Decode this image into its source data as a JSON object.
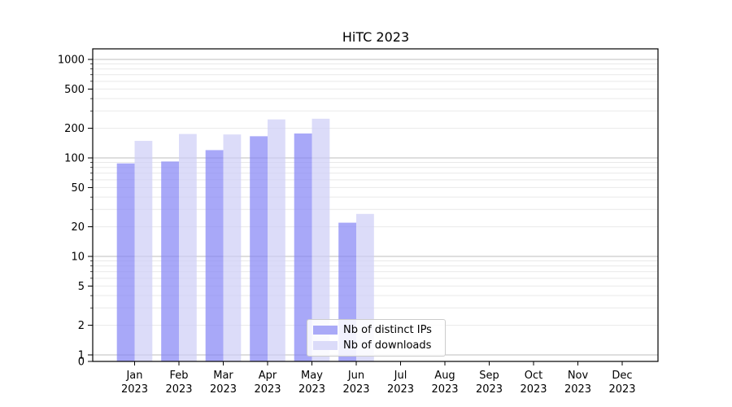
{
  "figure": {
    "title": "HiTC 2023"
  },
  "legend": {
    "items": [
      {
        "label": "Nb of distinct IPs",
        "color": "#a9a9f7"
      },
      {
        "label": "Nb of downloads",
        "color": "#dbdbf9"
      }
    ]
  },
  "chart_data": {
    "type": "bar",
    "title": "HiTC 2023",
    "categories": [
      "Jan 2023",
      "Feb 2023",
      "Mar 2023",
      "Apr 2023",
      "May 2023",
      "Jun 2023",
      "Jul 2023",
      "Aug 2023",
      "Sep 2023",
      "Oct 2023",
      "Nov 2023",
      "Dec 2023"
    ],
    "series": [
      {
        "name": "Nb of distinct IPs",
        "color": "#a9a9f7",
        "fill_rgba": "rgba(131,131,245,0.7)",
        "values": [
          88,
          92,
          120,
          166,
          177,
          22,
          0,
          0,
          0,
          0,
          0,
          0
        ]
      },
      {
        "name": "Nb of downloads",
        "color": "#dbdbf9",
        "fill_rgba": "rgba(205,205,247,0.7)",
        "values": [
          149,
          175,
          173,
          246,
          250,
          27,
          0,
          0,
          0,
          0,
          0,
          0
        ]
      }
    ],
    "xlabel": "",
    "ylabel": "",
    "yscale": "symlog",
    "yticks": [
      0,
      1,
      2,
      5,
      10,
      20,
      50,
      100,
      200,
      500,
      1000
    ],
    "ylim": [
      0,
      1300
    ],
    "grid": "both",
    "grid_major_color": "#bcbcbc",
    "grid_minor_color": "#e9e9e9",
    "legend_position": "lower center"
  }
}
